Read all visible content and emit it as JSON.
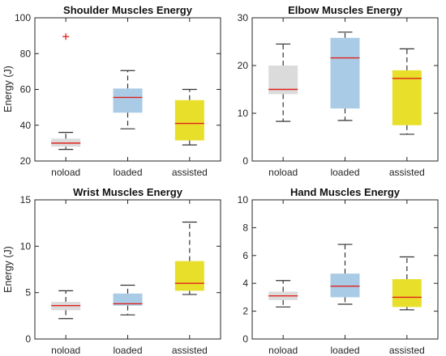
{
  "chart_data": [
    {
      "type": "box",
      "title": "Shoulder Muscles Energy",
      "ylabel": "Energy (J)",
      "xlabel": "",
      "categories": [
        "noload",
        "loaded",
        "assisted"
      ],
      "ylim": [
        20,
        100
      ],
      "yticks": [
        20,
        40,
        60,
        80,
        100
      ],
      "boxes": [
        {
          "category": "noload",
          "whisker_low": 26.5,
          "q1": 28,
          "median": 30,
          "q3": 32.5,
          "whisker_high": 36,
          "outliers": [
            89.5
          ]
        },
        {
          "category": "loaded",
          "whisker_low": 38,
          "q1": 47,
          "median": 55.5,
          "q3": 60.5,
          "whisker_high": 70.5,
          "outliers": []
        },
        {
          "category": "assisted",
          "whisker_low": 29,
          "q1": 31.5,
          "median": 41,
          "q3": 54,
          "whisker_high": 60,
          "outliers": []
        }
      ]
    },
    {
      "type": "box",
      "title": "Elbow Muscles Energy",
      "ylabel": "",
      "xlabel": "",
      "categories": [
        "noload",
        "loaded",
        "assisted"
      ],
      "ylim": [
        0,
        30
      ],
      "yticks": [
        0,
        10,
        20,
        30
      ],
      "boxes": [
        {
          "category": "noload",
          "whisker_low": 8.3,
          "q1": 14,
          "median": 15,
          "q3": 20,
          "whisker_high": 24.5,
          "outliers": []
        },
        {
          "category": "loaded",
          "whisker_low": 8.5,
          "q1": 11,
          "median": 21.6,
          "q3": 25.8,
          "whisker_high": 27,
          "outliers": []
        },
        {
          "category": "assisted",
          "whisker_low": 5.6,
          "q1": 7.5,
          "median": 17.3,
          "q3": 19,
          "whisker_high": 23.5,
          "outliers": []
        }
      ]
    },
    {
      "type": "box",
      "title": "Wrist Muscles Energy",
      "ylabel": "Energy (J)",
      "xlabel": "",
      "categories": [
        "noload",
        "loaded",
        "assisted"
      ],
      "ylim": [
        0,
        15
      ],
      "yticks": [
        0,
        5,
        10,
        15
      ],
      "boxes": [
        {
          "category": "noload",
          "whisker_low": 2.2,
          "q1": 3.1,
          "median": 3.6,
          "q3": 4,
          "whisker_high": 5.2,
          "outliers": []
        },
        {
          "category": "loaded",
          "whisker_low": 2.6,
          "q1": 3.6,
          "median": 3.8,
          "q3": 4.9,
          "whisker_high": 5.8,
          "outliers": []
        },
        {
          "category": "assisted",
          "whisker_low": 4.8,
          "q1": 5.2,
          "median": 6,
          "q3": 8.4,
          "whisker_high": 12.6,
          "outliers": []
        }
      ]
    },
    {
      "type": "box",
      "title": "Hand Muscles Energy",
      "ylabel": "",
      "xlabel": "",
      "categories": [
        "noload",
        "loaded",
        "assisted"
      ],
      "ylim": [
        0,
        10
      ],
      "yticks": [
        0,
        2,
        4,
        6,
        8,
        10
      ],
      "boxes": [
        {
          "category": "noload",
          "whisker_low": 2.3,
          "q1": 2.8,
          "median": 3.1,
          "q3": 3.4,
          "whisker_high": 4.2,
          "outliers": []
        },
        {
          "category": "loaded",
          "whisker_low": 2.5,
          "q1": 3,
          "median": 3.8,
          "q3": 4.7,
          "whisker_high": 6.8,
          "outliers": []
        },
        {
          "category": "assisted",
          "whisker_low": 2.1,
          "q1": 2.3,
          "median": 3.0,
          "q3": 4.3,
          "whisker_high": 5.9,
          "outliers": []
        }
      ]
    }
  ],
  "colors": {
    "noload": "#dbdbdb",
    "loaded": "#aacbe6",
    "assisted": "#e8df2a",
    "median": "#e0201b",
    "outlier": "#e0201b",
    "whisker": "#333333",
    "axis": "#262626"
  }
}
